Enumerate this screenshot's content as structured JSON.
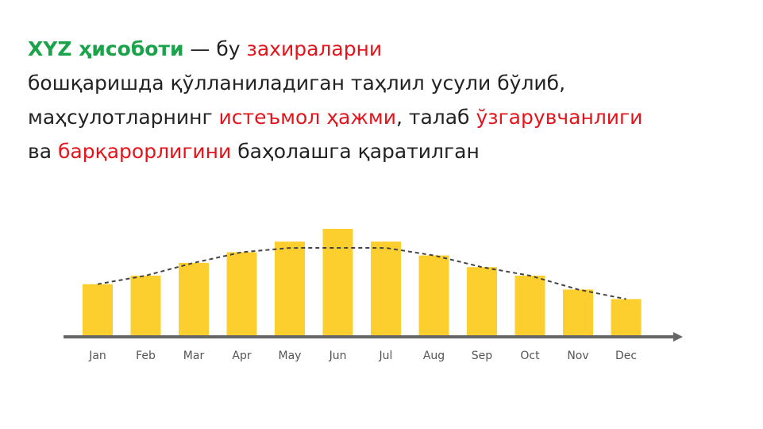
{
  "paragraph": {
    "term": "XYZ ҳисоботи",
    "t1": " — бу ",
    "h1": "захираларни",
    "t2": " бошқаришда қўлланиладиган таҳлил усули бўлиб, маҳсулотларнинг ",
    "h2": "истеъмол ҳажми",
    "t3": ", талаб ",
    "h3": "ўзгарувчанлиги",
    "t4": " ва ",
    "h4": "барқарорлигини",
    "t5": " баҳолашга қаратилган"
  },
  "colors": {
    "term": "#1aa34a",
    "highlight": "#e3141b",
    "bar": "#fccf2f",
    "axis": "#666666",
    "trend": "#444444"
  },
  "chart_data": {
    "type": "bar",
    "categories": [
      "Jan",
      "Feb",
      "Mar",
      "Apr",
      "May",
      "Jun",
      "Jul",
      "Aug",
      "Sep",
      "Oct",
      "Nov",
      "Dec"
    ],
    "values": [
      48,
      56,
      68,
      78,
      88,
      100,
      88,
      75,
      64,
      56,
      43,
      34
    ],
    "trendline": "dashed curve",
    "title": "",
    "xlabel": "",
    "ylabel": "",
    "grid": false
  }
}
